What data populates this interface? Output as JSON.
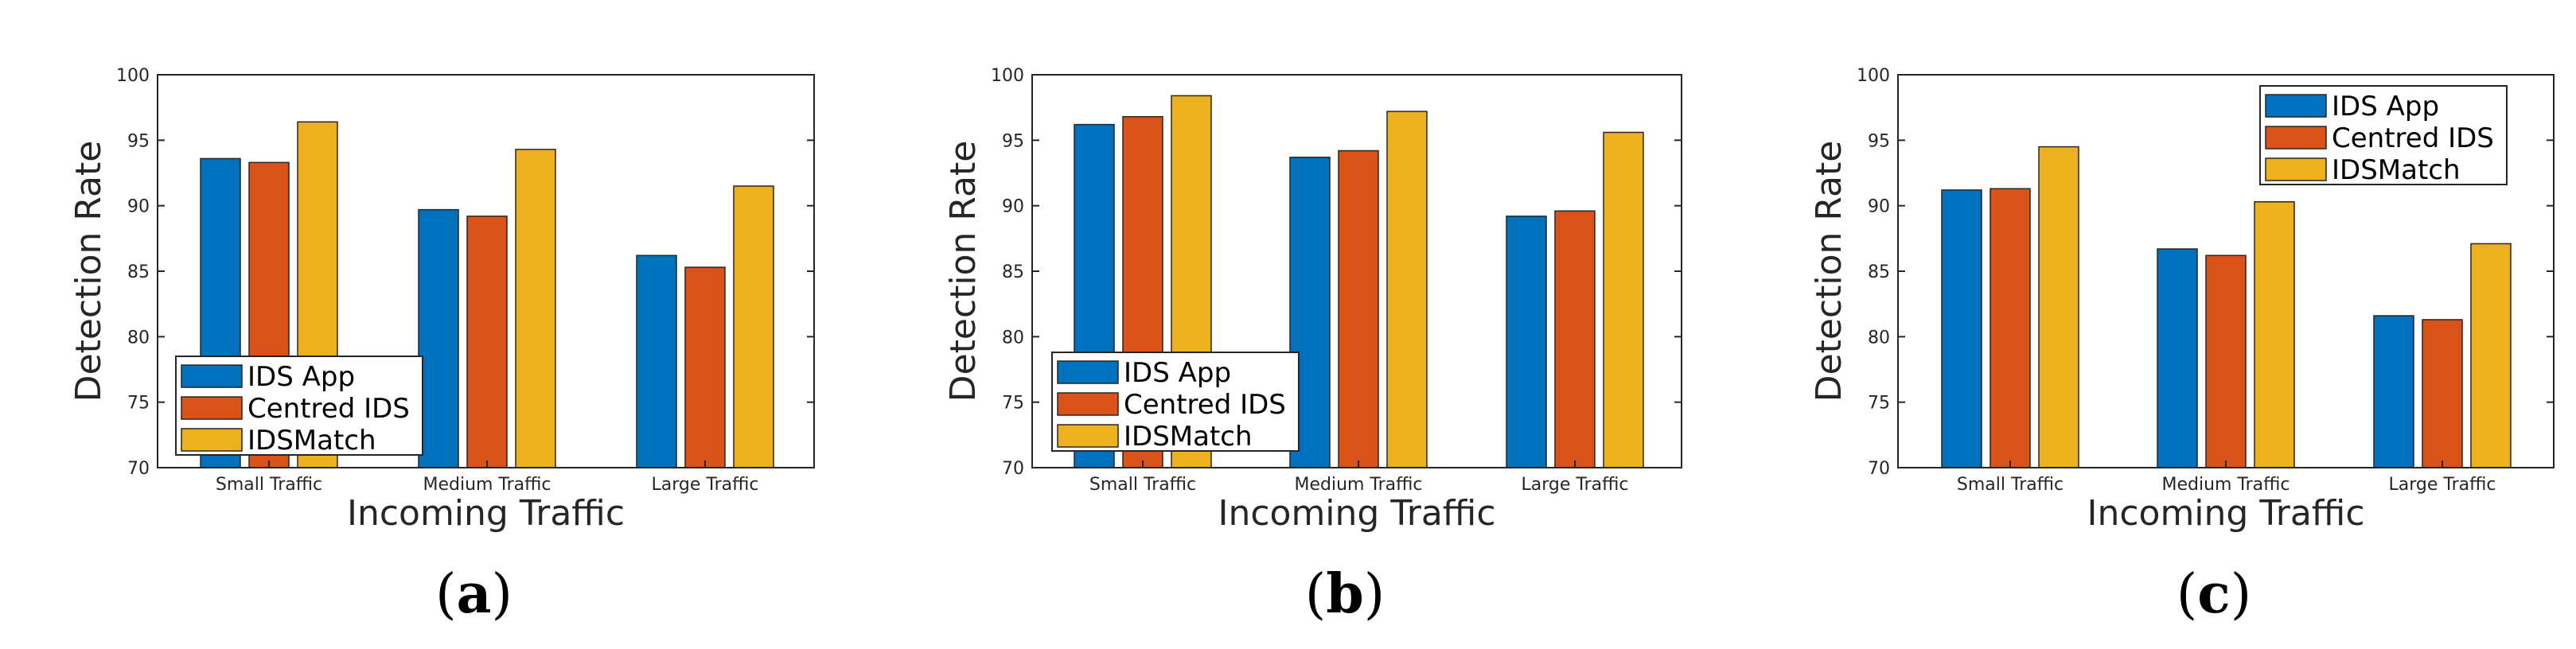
{
  "colors": {
    "IDS App": "#0072BD",
    "Centred IDS": "#D95319",
    "IDSMatch": "#EDB120",
    "axis": "#262626"
  },
  "chart_data": [
    {
      "type": "bar",
      "panel_label": {
        "open": "(",
        "letter": "a",
        "close": ")"
      },
      "categories": [
        "Small Traffic",
        "Medium Traffic",
        "Large Traffic"
      ],
      "series": [
        {
          "name": "IDS App",
          "values": [
            93.6,
            89.7,
            86.2
          ]
        },
        {
          "name": "Centred IDS",
          "values": [
            93.3,
            89.2,
            85.3
          ]
        },
        {
          "name": "IDSMatch",
          "values": [
            96.4,
            94.3,
            91.5
          ]
        }
      ],
      "xlabel": "Incoming Traffic",
      "ylabel": "Detection Rate",
      "ylim": [
        70,
        100
      ],
      "yticks": [
        70,
        75,
        80,
        85,
        90,
        95,
        100
      ],
      "legend_position": "bottom-left",
      "grid": false
    },
    {
      "type": "bar",
      "panel_label": {
        "open": "(",
        "letter": "b",
        "close": ")"
      },
      "categories": [
        "Small Traffic",
        "Medium Traffic",
        "Large Traffic"
      ],
      "series": [
        {
          "name": "IDS App",
          "values": [
            96.2,
            93.7,
            89.2
          ]
        },
        {
          "name": "Centred IDS",
          "values": [
            96.8,
            94.2,
            89.6
          ]
        },
        {
          "name": "IDSMatch",
          "values": [
            98.4,
            97.2,
            95.6
          ]
        }
      ],
      "xlabel": "Incoming Traffic",
      "ylabel": "Detection Rate",
      "ylim": [
        70,
        100
      ],
      "yticks": [
        70,
        75,
        80,
        85,
        90,
        95,
        100
      ],
      "legend_position": "bottom-left",
      "grid": false
    },
    {
      "type": "bar",
      "panel_label": {
        "open": "(",
        "letter": "c",
        "close": ")"
      },
      "categories": [
        "Small Traffic",
        "Medium Traffic",
        "Large Traffic"
      ],
      "series": [
        {
          "name": "IDS App",
          "values": [
            91.2,
            86.7,
            81.6
          ]
        },
        {
          "name": "Centred IDS",
          "values": [
            91.3,
            86.2,
            81.3
          ]
        },
        {
          "name": "IDSMatch",
          "values": [
            94.5,
            90.3,
            87.1
          ]
        }
      ],
      "xlabel": "Incoming Traffic",
      "ylabel": "Detection Rate",
      "ylim": [
        70,
        100
      ],
      "yticks": [
        70,
        75,
        80,
        85,
        90,
        95,
        100
      ],
      "legend_position": "top-right",
      "grid": false
    }
  ]
}
